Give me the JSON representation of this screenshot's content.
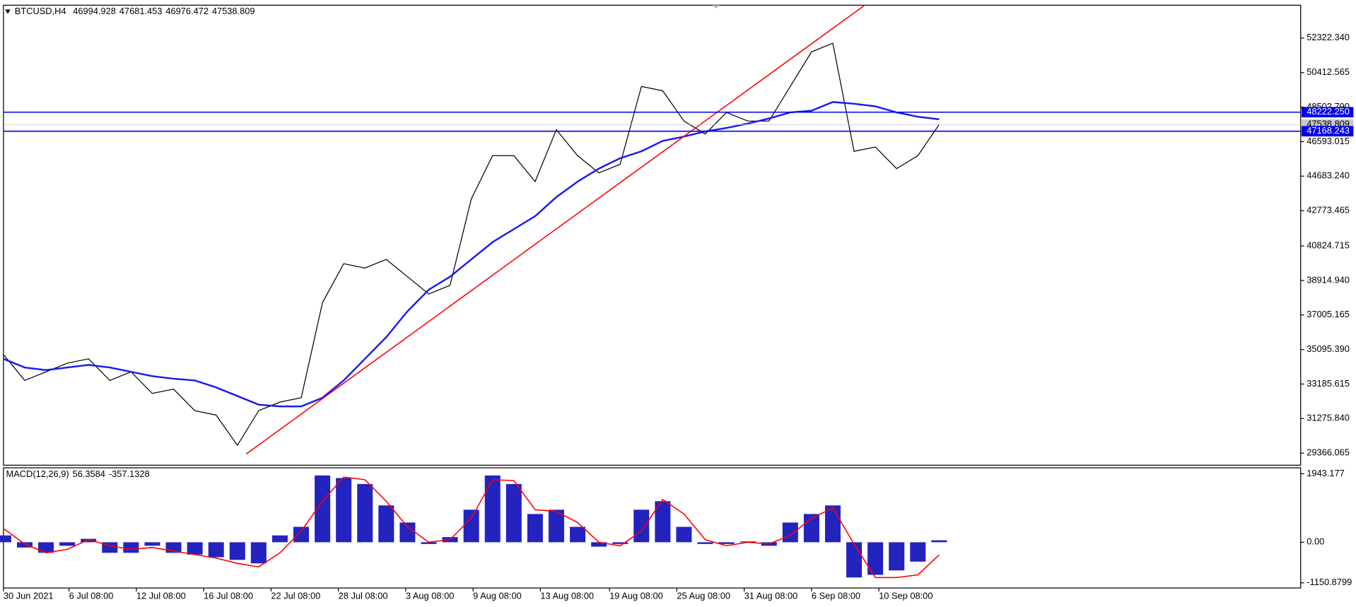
{
  "chart_data": [
    {
      "type": "line",
      "symbol": "BTCUSD,H4",
      "ohlc": [
        46994.928,
        47681.453,
        46976.472,
        47538.809
      ],
      "x": [
        0,
        12,
        24,
        36,
        48,
        60,
        72,
        84,
        96,
        108,
        120,
        132,
        144,
        156,
        168,
        180,
        192,
        204,
        216,
        228,
        240,
        252,
        264,
        276,
        288,
        300,
        312,
        324,
        336,
        348,
        360,
        372,
        384,
        396,
        408,
        420,
        432,
        444,
        456,
        468,
        480,
        492,
        504,
        516,
        528
      ],
      "series": [
        {
          "color": "#000000",
          "values": [
            34817,
            33383,
            33861,
            34339,
            34578,
            33383,
            33861,
            32666,
            32905,
            31709,
            31470,
            29796,
            31709,
            32187,
            32426,
            37687,
            39839,
            39600,
            40078,
            39122,
            38166,
            38644,
            43426,
            45818,
            45818,
            44383,
            47252,
            45818,
            44861,
            45340,
            49644,
            49405,
            47731,
            47013,
            48209,
            47731,
            47731,
            49644,
            51557,
            52035,
            46057,
            46296,
            45100,
            45818,
            47539
          ]
        },
        {
          "color": "#1a1aee",
          "values": [
            34578,
            34100,
            33957,
            34100,
            34243,
            34100,
            33861,
            33622,
            33478,
            33383,
            33000,
            32522,
            32044,
            31948,
            31948,
            32426,
            33383,
            34578,
            35774,
            37209,
            38405,
            39122,
            40078,
            41035,
            41752,
            42469,
            43521,
            44383,
            45100,
            45674,
            46057,
            46631,
            46870,
            47157,
            47348,
            47587,
            47874,
            48209,
            48305,
            48783,
            48687,
            48544,
            48209,
            47970,
            47827
          ]
        }
      ],
      "trendline": {
        "color": "#ff0000",
        "x": [
          137,
          486
        ],
        "values": [
          29318,
          54140
        ]
      },
      "hlines": [
        {
          "value": 48222.25,
          "label": "48222.250",
          "color": "#0000ee"
        },
        {
          "value": 47168.243,
          "label": "47168.243",
          "color": "#0000ee"
        }
      ],
      "last_price": 47538.809,
      "xlim": [
        0,
        732
      ],
      "ylim": [
        28696.5,
        54139.7
      ],
      "yticks": [
        {
          "value": 52322.34,
          "label": "52322.340"
        },
        50412.565,
        {
          "value": 48502.79,
          "label": "48502.790"
        },
        46593.015,
        {
          "value": 44683.24,
          "label": "44683.240"
        },
        42773.465,
        40824.715,
        {
          "value": 38914.94,
          "label": "38914.940"
        },
        37005.165,
        {
          "value": 35095.39,
          "label": "35095.390"
        },
        33185.615,
        {
          "value": 31275.84,
          "label": "31275.840"
        },
        29366.065
      ]
    },
    {
      "type": "bar",
      "title": "MACD(12,26,9)",
      "indicator_values": [
        56.3584,
        -357.1328
      ],
      "x": [
        0,
        12,
        24,
        36,
        48,
        60,
        72,
        84,
        96,
        108,
        120,
        132,
        144,
        156,
        168,
        180,
        192,
        204,
        216,
        228,
        240,
        252,
        264,
        276,
        288,
        300,
        312,
        324,
        336,
        348,
        360,
        372,
        384,
        396,
        408,
        420,
        432,
        444,
        456,
        468,
        480,
        492,
        504,
        516,
        528
      ],
      "color": "#2323c0",
      "values": [
        194,
        -150,
        -300,
        -100,
        97,
        -300,
        -300,
        -100,
        -300,
        -350,
        -425,
        -500,
        -600,
        194,
        437,
        1895,
        1822,
        1652,
        1045,
        559,
        -50,
        146,
        923,
        1895,
        1652,
        802,
        923,
        437,
        -125,
        -50,
        923,
        1166,
        437,
        -50,
        -50,
        24,
        -100,
        559,
        802,
        1045,
        -1000,
        -925,
        -800,
        -550,
        56.3584
      ],
      "signal": {
        "color": "#ff0000",
        "values": [
          389,
          -50,
          -300,
          -200,
          73,
          -100,
          -200,
          -150,
          -250,
          -350,
          -450,
          -600,
          -700,
          -300,
          316,
          1166,
          1847,
          1774,
          1166,
          437,
          0,
          73,
          680,
          1774,
          1750,
          923,
          875,
          559,
          0,
          -100,
          316,
          1215,
          802,
          73,
          -100,
          0,
          -50,
          194,
          680,
          972,
          -50,
          -1000,
          -1000,
          -925,
          -357.1328
        ]
      },
      "xlim": [
        0,
        732
      ],
      "ylim": [
        -1298,
        2113
      ],
      "yticks": [
        1943.177,
        {
          "value": 0,
          "label": "0.00"
        },
        -1150.8799
      ],
      "xticks": [
        {
          "value": 0,
          "label": "30 Jun 2021"
        },
        {
          "value": 37,
          "label": "6 Jul 08:00"
        },
        {
          "value": 75,
          "label": "12 Jul 08:00"
        },
        {
          "value": 113,
          "label": "16 Jul 08:00"
        },
        {
          "value": 151,
          "label": "22 Jul 08:00"
        },
        {
          "value": 189,
          "label": "28 Jul 08:00"
        },
        {
          "value": 227,
          "label": "3 Aug 08:00"
        },
        {
          "value": 265,
          "label": "9 Aug 08:00"
        },
        {
          "value": 303,
          "label": "13 Aug 08:00"
        },
        {
          "value": 342,
          "label": "19 Aug 08:00"
        },
        {
          "value": 380,
          "label": "25 Aug 08:00"
        },
        {
          "value": 418,
          "label": "31 Aug 08:00"
        },
        {
          "value": 456,
          "label": "6 Sep 08:00"
        },
        {
          "value": 494,
          "label": "10 Sep 08:00"
        }
      ]
    }
  ]
}
